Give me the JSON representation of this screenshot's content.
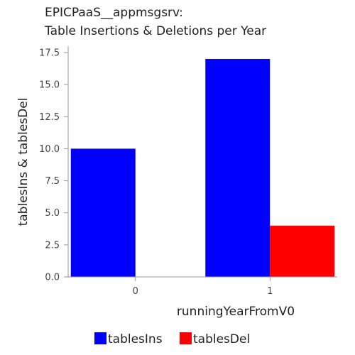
{
  "chart_data": {
    "type": "bar",
    "title_lines": [
      "EPICPaaS__appmsgsrv:",
      "Table Insertions & Deletions per Year"
    ],
    "xlabel": "runningYearFromV0",
    "ylabel": "tablesIns & tablesDel",
    "categories": [
      "0",
      "1"
    ],
    "series": [
      {
        "name": "tablesIns",
        "color": "#0000ff",
        "values": [
          10,
          17
        ]
      },
      {
        "name": "tablesDel",
        "color": "#ff0000",
        "values": [
          0,
          4
        ]
      }
    ],
    "ylim": [
      0,
      17.5
    ],
    "yticks": [
      "0.0",
      "2.5",
      "5.0",
      "7.5",
      "10.0",
      "12.5",
      "15.0",
      "17.5"
    ],
    "grid": false,
    "legend_position": "bottom"
  }
}
